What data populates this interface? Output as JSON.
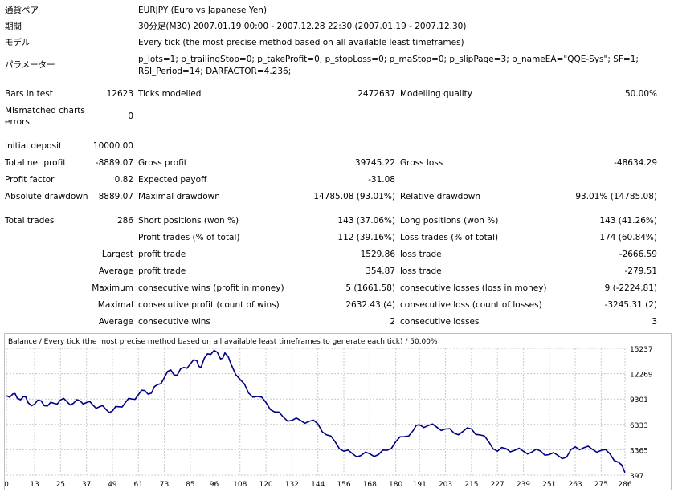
{
  "report": {
    "symbol_label": "通貨ペア",
    "symbol_value": "EURJPY (Euro vs Japanese Yen)",
    "period_label": "期間",
    "period_value": "30分足(M30) 2007.01.19 00:00 - 2007.12.28 22:30 (2007.01.19 - 2007.12.30)",
    "model_label": "モデル",
    "model_value": "Every tick (the most precise method based on all available least timeframes)",
    "params_label": "パラメーター",
    "params_line1": "p_lots=1; p_trailingStop=0; p_takeProfit=0; p_stopLoss=0; p_maStop=0; p_slipPage=3; p_nameEA=\"QQE-Sys\"; SF=1;",
    "params_line2": "RSI_Period=14; DARFACTOR=4.236;"
  },
  "stats": {
    "bars_label": "Bars in test",
    "bars_value": "12623",
    "ticks_label": "Ticks modelled",
    "ticks_value": "2472637",
    "quality_label": "Modelling quality",
    "quality_value": "50.00%",
    "mismatch_label1": "Mismatched charts",
    "mismatch_label2": "errors",
    "mismatch_value": "0",
    "deposit_label": "Initial deposit",
    "deposit_value": "10000.00",
    "netprofit_label": "Total net profit",
    "netprofit_value": "-8889.07",
    "grossprofit_label": "Gross profit",
    "grossprofit_value": "39745.22",
    "grossloss_label": "Gross loss",
    "grossloss_value": "-48634.29",
    "pf_label": "Profit factor",
    "pf_value": "0.82",
    "payoff_label": "Expected payoff",
    "payoff_value": "-31.08",
    "absdd_label": "Absolute drawdown",
    "absdd_value": "8889.07",
    "maxdd_label": "Maximal drawdown",
    "maxdd_value": "14785.08 (93.01%)",
    "reldd_label": "Relative drawdown",
    "reldd_value": "93.01% (14785.08)",
    "trades_label": "Total trades",
    "trades_value": "286",
    "short_label": "Short positions (won %)",
    "short_value": "143 (37.06%)",
    "long_label": "Long positions (won %)",
    "long_value": "143 (41.26%)",
    "ptrades_label": "Profit trades (% of total)",
    "ptrades_value": "112 (39.16%)",
    "ltrades_label": "Loss trades (% of total)",
    "ltrades_value": "174 (60.84%)",
    "largest_label": "Largest",
    "largest_p_label": "profit trade",
    "largest_p_value": "1529.86",
    "largest_l_label": "loss trade",
    "largest_l_value": "-2666.59",
    "average_label": "Average",
    "average_p_label": "profit trade",
    "average_p_value": "354.87",
    "average_l_label": "loss trade",
    "average_l_value": "-279.51",
    "maximum_label": "Maximum",
    "maxwins_label": "consecutive wins (profit in money)",
    "maxwins_value": "5 (1661.58)",
    "maxloss_label": "consecutive losses (loss in money)",
    "maxloss_value": "9 (-2224.81)",
    "maximal_label": "Maximal",
    "maxprofit_label": "consecutive profit (count of wins)",
    "maxprofit_value": "2632.43 (4)",
    "maxlossc_label": "consecutive loss (count of losses)",
    "maxlossc_value": "-3245.31 (2)",
    "avg2_label": "Average",
    "avgwins_label": "consecutive wins",
    "avgwins_value": "2",
    "avglosses_label": "consecutive losses",
    "avglosses_value": "3"
  },
  "chart_data": {
    "type": "line",
    "title": "Balance / Every tick (the most precise method based on all available least timeframes to generate each tick) / 50.00%",
    "y_ticks": [
      "15237",
      "12269",
      "9301",
      "6333",
      "3365",
      "397"
    ],
    "x_ticks": [
      "0",
      "13",
      "25",
      "37",
      "49",
      "61",
      "73",
      "85",
      "96",
      "108",
      "120",
      "132",
      "144",
      "156",
      "168",
      "180",
      "191",
      "203",
      "215",
      "227",
      "239",
      "251",
      "263",
      "275",
      "286"
    ],
    "ylim": [
      397,
      15237
    ],
    "xlim": [
      0,
      286
    ],
    "grid": true,
    "line_color": "#000080",
    "x": [
      0,
      3,
      5,
      8,
      10,
      13,
      16,
      19,
      22,
      25,
      28,
      31,
      34,
      37,
      40,
      43,
      46,
      49,
      52,
      55,
      58,
      61,
      64,
      67,
      70,
      73,
      76,
      79,
      82,
      85,
      88,
      90,
      93,
      96,
      99,
      101,
      104,
      108,
      112,
      116,
      120,
      124,
      128,
      132,
      136,
      140,
      144,
      148,
      152,
      156,
      160,
      164,
      168,
      172,
      176,
      180,
      184,
      188,
      191,
      195,
      199,
      203,
      207,
      211,
      215,
      219,
      223,
      227,
      231,
      235,
      239,
      243,
      247,
      251,
      255,
      259,
      263,
      267,
      271,
      275,
      279,
      283,
      286
    ],
    "y": [
      9700,
      9900,
      9400,
      9600,
      8900,
      8700,
      9100,
      8500,
      8800,
      9200,
      9000,
      8800,
      9100,
      8900,
      8600,
      8400,
      8100,
      7900,
      8400,
      8900,
      9300,
      9800,
      10300,
      10000,
      11000,
      11800,
      12700,
      12100,
      13000,
      13400,
      13800,
      13000,
      14600,
      15000,
      14000,
      14700,
      13300,
      11600,
      10000,
      9600,
      8900,
      7800,
      7200,
      6800,
      6800,
      6700,
      6400,
      5100,
      4300,
      3200,
      2900,
      2700,
      2900,
      2800,
      3300,
      4300,
      4900,
      5600,
      6300,
      6200,
      6000,
      5800,
      5300,
      5500,
      5800,
      5100,
      4300,
      3200,
      3500,
      3300,
      3200,
      3100,
      3200,
      2800,
      2700,
      2500,
      3700,
      3600,
      3400,
      3300,
      2900,
      1900,
      700
    ]
  }
}
